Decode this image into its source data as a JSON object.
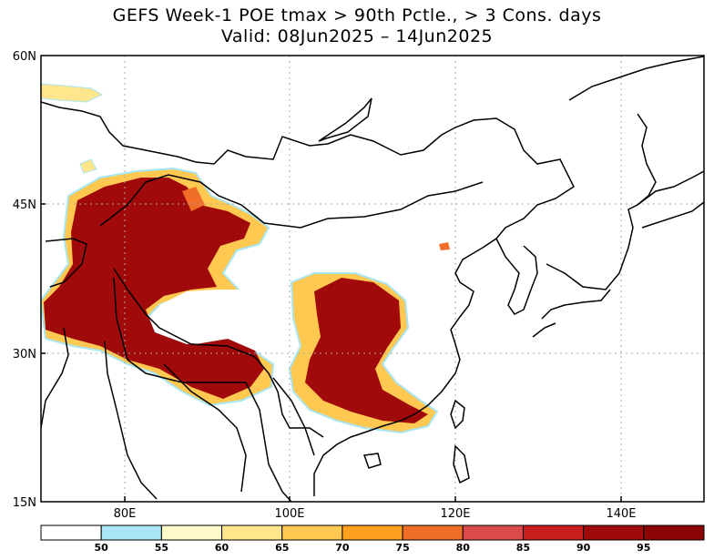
{
  "title_line1": "GEFS Week-1 POE tmax > 90th Pctle., > 3 Cons. days",
  "title_line2": "Valid: 08Jun2025 – 14Jun2025",
  "lat_labels": [
    "60N",
    "45N",
    "30N",
    "15N"
  ],
  "lon_labels": [
    "80E",
    "100E",
    "120E",
    "140E"
  ],
  "colorbar": {
    "ticks": [
      "50",
      "55",
      "60",
      "65",
      "70",
      "75",
      "80",
      "85",
      "90",
      "95"
    ],
    "colors": [
      "#ffffff",
      "#a8e6f5",
      "#fffac8",
      "#ffe68c",
      "#ffc850",
      "#ffa01e",
      "#f06e28",
      "#dc4b4b",
      "#c81e1e",
      "#a00a0a",
      "#8c0505"
    ]
  },
  "map": {
    "lon_range": [
      70,
      150
    ],
    "lat_range": [
      15,
      60
    ],
    "grid": "dotted"
  }
}
